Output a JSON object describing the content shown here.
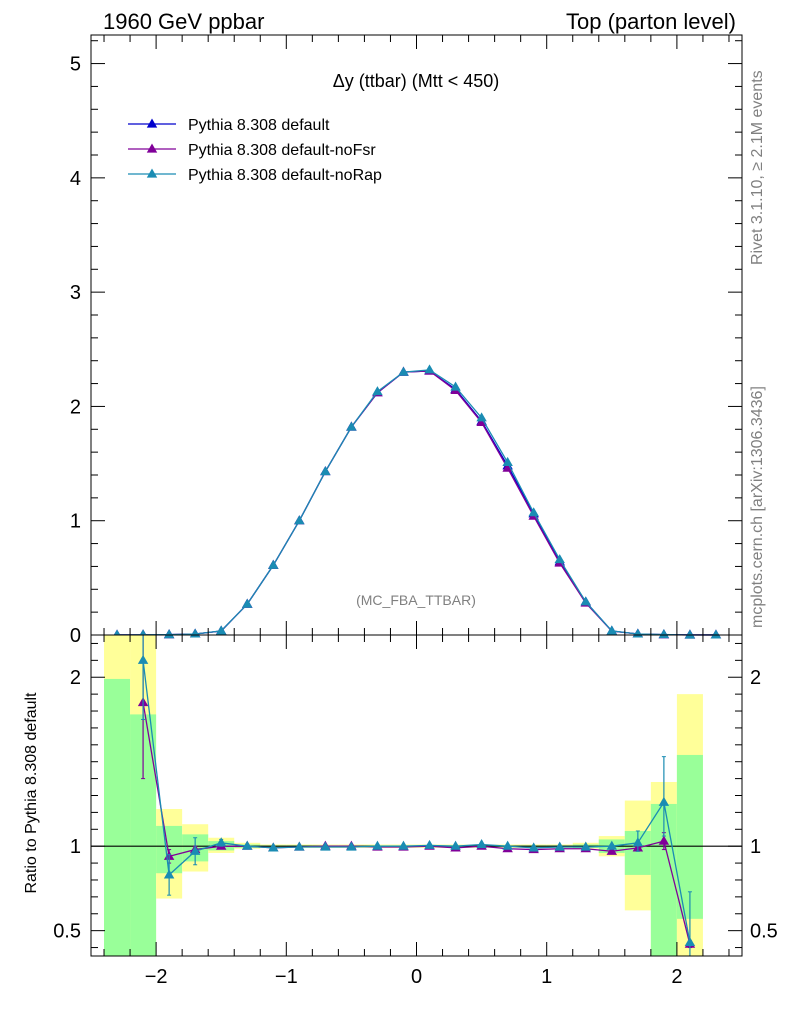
{
  "header": {
    "left": "1960 GeV ppbar",
    "right": "Top (parton level)"
  },
  "side_labels": {
    "rivet": "Rivet 3.1.10, ≥ 2.1M events",
    "mcplots": "mcplots.cern.ch [arXiv:1306.3436]"
  },
  "chart_data": [
    {
      "type": "line",
      "title": "Δy (ttbar) (Mtt < 450)",
      "watermark": "(MC_FBA_TTBAR)",
      "ylim": [
        0,
        5.25
      ],
      "xlim": [
        -2.5,
        2.5
      ],
      "yticks": [
        0,
        1,
        2,
        3,
        4,
        5
      ],
      "ytick_labels": [
        "0",
        "1",
        "2",
        "3",
        "4",
        "5"
      ],
      "grid": false,
      "legend_position": "top-left",
      "x": [
        -2.3,
        -2.1,
        -1.9,
        -1.7,
        -1.5,
        -1.3,
        -1.1,
        -0.9,
        -0.7,
        -0.5,
        -0.3,
        -0.1,
        0.1,
        0.3,
        0.5,
        0.7,
        0.9,
        1.1,
        1.3,
        1.5,
        1.7,
        1.9,
        2.1,
        2.3
      ],
      "series": [
        {
          "name": "Pythia 8.308 default",
          "color": "#0000cc",
          "values": [
            0.0005,
            0.001,
            0.003,
            0.009,
            0.035,
            0.27,
            0.61,
            1.0,
            1.43,
            1.82,
            2.12,
            2.3,
            2.31,
            2.15,
            1.87,
            1.48,
            1.06,
            0.64,
            0.29,
            0.035,
            0.009,
            0.003,
            0.001,
            0.0005
          ]
        },
        {
          "name": "Pythia 8.308 default-noFsr",
          "color": "#800099",
          "values": [
            0.0005,
            0.002,
            0.003,
            0.009,
            0.035,
            0.27,
            0.61,
            1.0,
            1.43,
            1.82,
            2.12,
            2.3,
            2.31,
            2.14,
            1.86,
            1.46,
            1.04,
            0.63,
            0.28,
            0.034,
            0.009,
            0.003,
            0.0,
            0.0005
          ]
        },
        {
          "name": "Pythia 8.308 default-noRap",
          "color": "#1a8cb3",
          "values": [
            0.0005,
            0.002,
            0.003,
            0.009,
            0.036,
            0.27,
            0.61,
            1.0,
            1.43,
            1.82,
            2.13,
            2.3,
            2.32,
            2.17,
            1.9,
            1.51,
            1.07,
            0.66,
            0.29,
            0.036,
            0.009,
            0.004,
            0.0,
            0.0005
          ]
        }
      ]
    },
    {
      "type": "line",
      "ylabel": "Ratio to Pythia 8.308 default",
      "ylim": [
        0.35,
        2.25
      ],
      "xlim": [
        -2.5,
        2.5
      ],
      "yticks": [
        0.5,
        1,
        2
      ],
      "ytick_labels": [
        "0.5",
        "1",
        "2"
      ],
      "xticks": [
        -2,
        -1,
        0,
        1,
        2
      ],
      "xtick_labels": [
        "−2",
        "−1",
        "0",
        "1",
        "2"
      ],
      "reference_line": 1,
      "x": [
        -2.1,
        -1.9,
        -1.7,
        -1.5,
        -1.3,
        -1.1,
        -0.9,
        -0.7,
        -0.5,
        -0.3,
        -0.1,
        0.1,
        0.3,
        0.5,
        0.7,
        0.9,
        1.1,
        1.3,
        1.5,
        1.7,
        1.9,
        2.1
      ],
      "bands": {
        "edges": [
          -2.4,
          -2.2,
          -2.0,
          -1.8,
          -1.6,
          -1.4,
          -1.2,
          -1.0,
          -0.8,
          -0.6,
          -0.4,
          -0.2,
          0.0,
          0.2,
          0.4,
          0.6,
          0.8,
          1.0,
          1.2,
          1.4,
          1.6,
          1.8,
          2.0,
          2.2
        ],
        "yellow_low": [
          0.35,
          0.35,
          0.69,
          0.85,
          0.96,
          0.985,
          0.99,
          0.99,
          0.99,
          0.99,
          0.99,
          0.99,
          0.99,
          0.99,
          0.99,
          0.99,
          0.99,
          0.99,
          0.985,
          0.94,
          0.62,
          0.35,
          0.35
        ],
        "yellow_high": [
          2.25,
          2.25,
          1.22,
          1.13,
          1.05,
          1.02,
          1.01,
          1.01,
          1.01,
          1.01,
          1.01,
          1.01,
          1.01,
          1.01,
          1.01,
          1.01,
          1.01,
          1.01,
          1.02,
          1.06,
          1.27,
          1.38,
          1.9
        ],
        "green_low": [
          0.35,
          0.35,
          0.84,
          0.91,
          0.975,
          0.99,
          0.995,
          0.995,
          0.995,
          0.995,
          0.995,
          0.995,
          0.995,
          0.995,
          0.995,
          0.995,
          0.995,
          0.995,
          0.99,
          0.96,
          0.83,
          0.35,
          0.57
        ],
        "green_high": [
          1.99,
          1.78,
          1.12,
          1.07,
          1.03,
          1.01,
          1.005,
          1.005,
          1.005,
          1.005,
          1.005,
          1.005,
          1.005,
          1.005,
          1.005,
          1.005,
          1.005,
          1.005,
          1.01,
          1.04,
          1.09,
          1.25,
          1.54
        ]
      },
      "series": [
        {
          "name": "Pythia 8.308 default-noFsr",
          "color": "#800099",
          "values": [
            1.85,
            0.94,
            0.98,
            1.0,
            1.0,
            0.99,
            0.995,
            1.0,
            1.0,
            0.995,
            0.995,
            1.0,
            0.99,
            1.0,
            0.985,
            0.98,
            0.985,
            0.985,
            0.97,
            0.99,
            1.03,
            0.42
          ],
          "err_low": [
            0.45,
            0.04,
            0.02,
            0.01,
            0.005,
            0.005,
            0.005,
            0.005,
            0.005,
            0.005,
            0.005,
            0.005,
            0.005,
            0.005,
            0.005,
            0.005,
            0.005,
            0.005,
            0.005,
            0.02,
            0.05,
            0.02
          ],
          "err_high": [
            0.45,
            0.04,
            0.02,
            0.01,
            0.005,
            0.005,
            0.005,
            0.005,
            0.005,
            0.005,
            0.005,
            0.005,
            0.005,
            0.005,
            0.005,
            0.005,
            0.005,
            0.005,
            0.005,
            0.02,
            0.05,
            0.02
          ]
        },
        {
          "name": "Pythia 8.308 default-noRap",
          "color": "#1a8cb3",
          "values": [
            2.1,
            0.83,
            0.97,
            1.02,
            1.0,
            0.99,
            0.995,
            0.995,
            0.995,
            1.0,
            1.0,
            1.005,
            1.0,
            1.01,
            1.0,
            0.99,
            0.995,
            0.995,
            1.0,
            1.02,
            1.26,
            0.43
          ],
          "err_low": [
            0.35,
            0.12,
            0.08,
            0.02,
            0.005,
            0.005,
            0.005,
            0.005,
            0.005,
            0.005,
            0.005,
            0.005,
            0.005,
            0.005,
            0.005,
            0.005,
            0.005,
            0.005,
            0.01,
            0.05,
            0.2,
            0.08
          ],
          "err_high": [
            0.35,
            0.12,
            0.08,
            0.02,
            0.005,
            0.005,
            0.005,
            0.005,
            0.005,
            0.005,
            0.005,
            0.005,
            0.005,
            0.005,
            0.005,
            0.005,
            0.005,
            0.005,
            0.01,
            0.07,
            0.27,
            0.3
          ]
        }
      ]
    }
  ]
}
